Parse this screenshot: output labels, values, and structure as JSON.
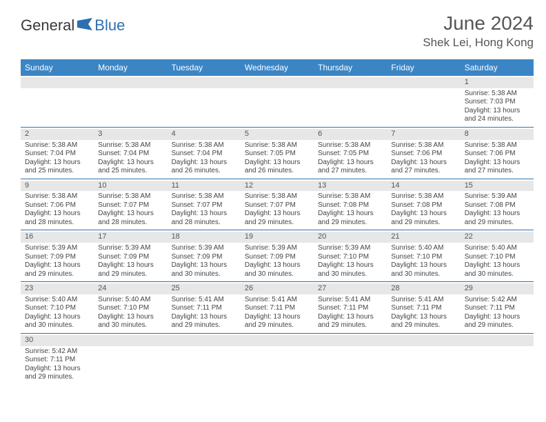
{
  "logo": {
    "word1": "General",
    "word2": "Blue",
    "accent_color": "#2d6fb0"
  },
  "header": {
    "title": "June 2024",
    "location": "Shek Lei, Hong Kong"
  },
  "calendar": {
    "day_header_bg": "#3b85c5",
    "border_color": "#2d6fb0",
    "day_band_bg": "#e7e7e7",
    "day_names": [
      "Sunday",
      "Monday",
      "Tuesday",
      "Wednesday",
      "Thursday",
      "Friday",
      "Saturday"
    ],
    "first_weekday": 6,
    "days": [
      {
        "n": 1,
        "sunrise": "5:38 AM",
        "sunset": "7:03 PM",
        "daylight": "13 hours and 24 minutes."
      },
      {
        "n": 2,
        "sunrise": "5:38 AM",
        "sunset": "7:04 PM",
        "daylight": "13 hours and 25 minutes."
      },
      {
        "n": 3,
        "sunrise": "5:38 AM",
        "sunset": "7:04 PM",
        "daylight": "13 hours and 25 minutes."
      },
      {
        "n": 4,
        "sunrise": "5:38 AM",
        "sunset": "7:04 PM",
        "daylight": "13 hours and 26 minutes."
      },
      {
        "n": 5,
        "sunrise": "5:38 AM",
        "sunset": "7:05 PM",
        "daylight": "13 hours and 26 minutes."
      },
      {
        "n": 6,
        "sunrise": "5:38 AM",
        "sunset": "7:05 PM",
        "daylight": "13 hours and 27 minutes."
      },
      {
        "n": 7,
        "sunrise": "5:38 AM",
        "sunset": "7:06 PM",
        "daylight": "13 hours and 27 minutes."
      },
      {
        "n": 8,
        "sunrise": "5:38 AM",
        "sunset": "7:06 PM",
        "daylight": "13 hours and 27 minutes."
      },
      {
        "n": 9,
        "sunrise": "5:38 AM",
        "sunset": "7:06 PM",
        "daylight": "13 hours and 28 minutes."
      },
      {
        "n": 10,
        "sunrise": "5:38 AM",
        "sunset": "7:07 PM",
        "daylight": "13 hours and 28 minutes."
      },
      {
        "n": 11,
        "sunrise": "5:38 AM",
        "sunset": "7:07 PM",
        "daylight": "13 hours and 28 minutes."
      },
      {
        "n": 12,
        "sunrise": "5:38 AM",
        "sunset": "7:07 PM",
        "daylight": "13 hours and 29 minutes."
      },
      {
        "n": 13,
        "sunrise": "5:38 AM",
        "sunset": "7:08 PM",
        "daylight": "13 hours and 29 minutes."
      },
      {
        "n": 14,
        "sunrise": "5:38 AM",
        "sunset": "7:08 PM",
        "daylight": "13 hours and 29 minutes."
      },
      {
        "n": 15,
        "sunrise": "5:39 AM",
        "sunset": "7:08 PM",
        "daylight": "13 hours and 29 minutes."
      },
      {
        "n": 16,
        "sunrise": "5:39 AM",
        "sunset": "7:09 PM",
        "daylight": "13 hours and 29 minutes."
      },
      {
        "n": 17,
        "sunrise": "5:39 AM",
        "sunset": "7:09 PM",
        "daylight": "13 hours and 29 minutes."
      },
      {
        "n": 18,
        "sunrise": "5:39 AM",
        "sunset": "7:09 PM",
        "daylight": "13 hours and 30 minutes."
      },
      {
        "n": 19,
        "sunrise": "5:39 AM",
        "sunset": "7:09 PM",
        "daylight": "13 hours and 30 minutes."
      },
      {
        "n": 20,
        "sunrise": "5:39 AM",
        "sunset": "7:10 PM",
        "daylight": "13 hours and 30 minutes."
      },
      {
        "n": 21,
        "sunrise": "5:40 AM",
        "sunset": "7:10 PM",
        "daylight": "13 hours and 30 minutes."
      },
      {
        "n": 22,
        "sunrise": "5:40 AM",
        "sunset": "7:10 PM",
        "daylight": "13 hours and 30 minutes."
      },
      {
        "n": 23,
        "sunrise": "5:40 AM",
        "sunset": "7:10 PM",
        "daylight": "13 hours and 30 minutes."
      },
      {
        "n": 24,
        "sunrise": "5:40 AM",
        "sunset": "7:10 PM",
        "daylight": "13 hours and 30 minutes."
      },
      {
        "n": 25,
        "sunrise": "5:41 AM",
        "sunset": "7:11 PM",
        "daylight": "13 hours and 29 minutes."
      },
      {
        "n": 26,
        "sunrise": "5:41 AM",
        "sunset": "7:11 PM",
        "daylight": "13 hours and 29 minutes."
      },
      {
        "n": 27,
        "sunrise": "5:41 AM",
        "sunset": "7:11 PM",
        "daylight": "13 hours and 29 minutes."
      },
      {
        "n": 28,
        "sunrise": "5:41 AM",
        "sunset": "7:11 PM",
        "daylight": "13 hours and 29 minutes."
      },
      {
        "n": 29,
        "sunrise": "5:42 AM",
        "sunset": "7:11 PM",
        "daylight": "13 hours and 29 minutes."
      },
      {
        "n": 30,
        "sunrise": "5:42 AM",
        "sunset": "7:11 PM",
        "daylight": "13 hours and 29 minutes."
      }
    ],
    "labels": {
      "sunrise": "Sunrise:",
      "sunset": "Sunset:",
      "daylight": "Daylight:"
    }
  }
}
